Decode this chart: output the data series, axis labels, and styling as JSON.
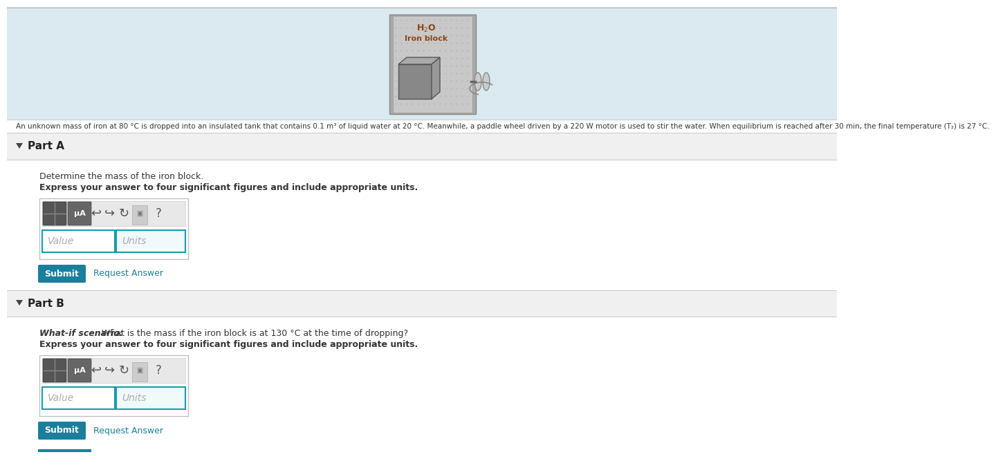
{
  "page_bg": "#ffffff",
  "top_bg": "#daeaf0",
  "section_header_bg": "#f0f0f0",
  "section_body_bg": "#ffffff",
  "divider_color": "#cccccc",
  "submit_color": "#1a7f9c",
  "submit_text_color": "#ffffff",
  "link_color": "#1a7f9c",
  "input_bg": "#ffffff",
  "input_border_color": "#1a9ab0",
  "units_bg": "#f0fafa",
  "toolbar_bg": "#e8e8e8",
  "toolbar_border": "#cccccc",
  "btn1_color": "#666666",
  "btn2_color": "#777777",
  "icon_color": "#555555",
  "bottom_line_color": "#1a7f9c",
  "problem_text": "An unknown mass of iron at 80 °C is dropped into an insulated tank that contains 0.1 m³ of liquid water at 20 °C. Meanwhile, a paddle wheel driven by a 220 W motor is used to stir the water. When equilibrium is reached after 30 min, the final temperature (T₂) is 27 °C.",
  "part_a_label": "Part A",
  "part_a_desc": "Determine the mass of the iron block.",
  "part_a_express": "Express your answer to four significant figures and include appropriate units.",
  "part_b_label": "Part B",
  "part_b_desc_italic": "What-if scenario: ",
  "part_b_desc_normal": "What is the mass if the iron block is at 130 °C at the time of dropping?",
  "part_b_express": "Express your answer to four significant figures and include appropriate units.",
  "value_placeholder": "Value",
  "units_placeholder": "Units",
  "top_border_color": "#bbbbbb",
  "img_outer_color": "#aaaaaa",
  "img_bg_color": "#c8c8c8",
  "img_dot_color": "#b8b8b8",
  "h2o_color": "#8B4513",
  "cube_front_color": "#888888",
  "cube_top_color": "#aaaaaa",
  "cube_right_color": "#999999",
  "cube_edge_color": "#555555"
}
